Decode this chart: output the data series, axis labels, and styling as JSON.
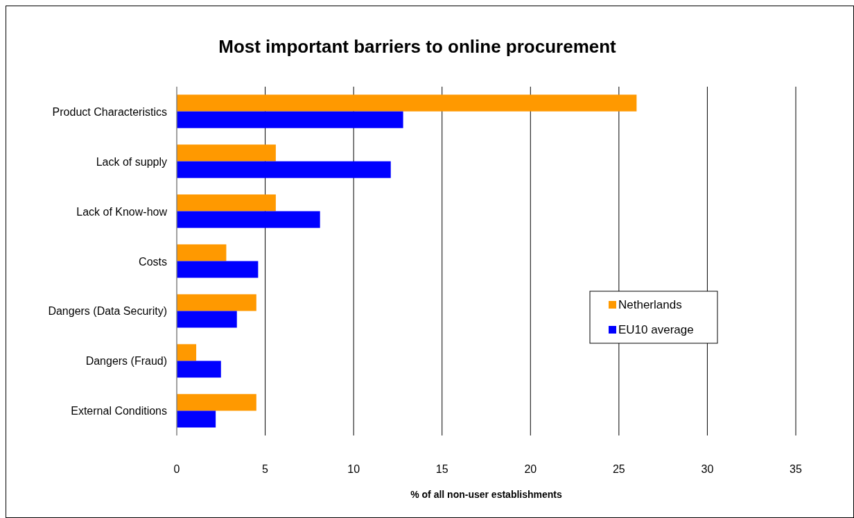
{
  "chart_data": {
    "type": "bar",
    "orientation": "horizontal",
    "title": "Most important barriers to online procurement",
    "xlabel": "% of all non-user establishments",
    "categories": [
      "Product Characteristics",
      "Lack of supply",
      "Lack of Know-how",
      "Costs",
      "Dangers (Data Security)",
      "Dangers (Fraud)",
      "External Conditions"
    ],
    "series": [
      {
        "name": "Netherlands",
        "color": "#ff9900",
        "values": [
          26.0,
          5.6,
          5.6,
          2.8,
          4.5,
          1.1,
          4.5
        ]
      },
      {
        "name": "EU10 average",
        "color": "#0000ff",
        "values": [
          12.8,
          12.1,
          8.1,
          4.6,
          3.4,
          2.5,
          2.2
        ]
      }
    ],
    "xlim": [
      0,
      35
    ],
    "xticks": [
      0,
      5,
      10,
      15,
      20,
      25,
      30,
      35
    ],
    "grid": "x",
    "legend": "right"
  }
}
